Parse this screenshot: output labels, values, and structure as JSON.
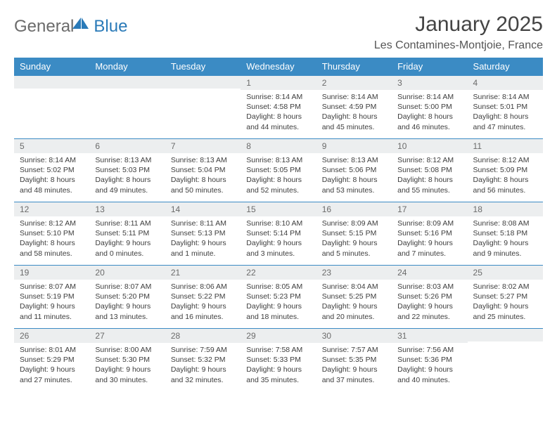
{
  "logo": {
    "text1": "General",
    "text2": "Blue"
  },
  "title": "January 2025",
  "location": "Les Contamines-Montjoie, France",
  "colors": {
    "header_bg": "#3b8bc4",
    "header_text": "#ffffff",
    "daynum_bg": "#eceeef",
    "daynum_text": "#6b6b6b",
    "border": "#3b8bc4",
    "body_text": "#3d3d3d"
  },
  "weekdays": [
    "Sunday",
    "Monday",
    "Tuesday",
    "Wednesday",
    "Thursday",
    "Friday",
    "Saturday"
  ],
  "weeks": [
    [
      {
        "blank": true
      },
      {
        "blank": true
      },
      {
        "blank": true
      },
      {
        "n": "1",
        "sr": "Sunrise: 8:14 AM",
        "ss": "Sunset: 4:58 PM",
        "d1": "Daylight: 8 hours",
        "d2": "and 44 minutes."
      },
      {
        "n": "2",
        "sr": "Sunrise: 8:14 AM",
        "ss": "Sunset: 4:59 PM",
        "d1": "Daylight: 8 hours",
        "d2": "and 45 minutes."
      },
      {
        "n": "3",
        "sr": "Sunrise: 8:14 AM",
        "ss": "Sunset: 5:00 PM",
        "d1": "Daylight: 8 hours",
        "d2": "and 46 minutes."
      },
      {
        "n": "4",
        "sr": "Sunrise: 8:14 AM",
        "ss": "Sunset: 5:01 PM",
        "d1": "Daylight: 8 hours",
        "d2": "and 47 minutes."
      }
    ],
    [
      {
        "n": "5",
        "sr": "Sunrise: 8:14 AM",
        "ss": "Sunset: 5:02 PM",
        "d1": "Daylight: 8 hours",
        "d2": "and 48 minutes."
      },
      {
        "n": "6",
        "sr": "Sunrise: 8:13 AM",
        "ss": "Sunset: 5:03 PM",
        "d1": "Daylight: 8 hours",
        "d2": "and 49 minutes."
      },
      {
        "n": "7",
        "sr": "Sunrise: 8:13 AM",
        "ss": "Sunset: 5:04 PM",
        "d1": "Daylight: 8 hours",
        "d2": "and 50 minutes."
      },
      {
        "n": "8",
        "sr": "Sunrise: 8:13 AM",
        "ss": "Sunset: 5:05 PM",
        "d1": "Daylight: 8 hours",
        "d2": "and 52 minutes."
      },
      {
        "n": "9",
        "sr": "Sunrise: 8:13 AM",
        "ss": "Sunset: 5:06 PM",
        "d1": "Daylight: 8 hours",
        "d2": "and 53 minutes."
      },
      {
        "n": "10",
        "sr": "Sunrise: 8:12 AM",
        "ss": "Sunset: 5:08 PM",
        "d1": "Daylight: 8 hours",
        "d2": "and 55 minutes."
      },
      {
        "n": "11",
        "sr": "Sunrise: 8:12 AM",
        "ss": "Sunset: 5:09 PM",
        "d1": "Daylight: 8 hours",
        "d2": "and 56 minutes."
      }
    ],
    [
      {
        "n": "12",
        "sr": "Sunrise: 8:12 AM",
        "ss": "Sunset: 5:10 PM",
        "d1": "Daylight: 8 hours",
        "d2": "and 58 minutes."
      },
      {
        "n": "13",
        "sr": "Sunrise: 8:11 AM",
        "ss": "Sunset: 5:11 PM",
        "d1": "Daylight: 9 hours",
        "d2": "and 0 minutes."
      },
      {
        "n": "14",
        "sr": "Sunrise: 8:11 AM",
        "ss": "Sunset: 5:13 PM",
        "d1": "Daylight: 9 hours",
        "d2": "and 1 minute."
      },
      {
        "n": "15",
        "sr": "Sunrise: 8:10 AM",
        "ss": "Sunset: 5:14 PM",
        "d1": "Daylight: 9 hours",
        "d2": "and 3 minutes."
      },
      {
        "n": "16",
        "sr": "Sunrise: 8:09 AM",
        "ss": "Sunset: 5:15 PM",
        "d1": "Daylight: 9 hours",
        "d2": "and 5 minutes."
      },
      {
        "n": "17",
        "sr": "Sunrise: 8:09 AM",
        "ss": "Sunset: 5:16 PM",
        "d1": "Daylight: 9 hours",
        "d2": "and 7 minutes."
      },
      {
        "n": "18",
        "sr": "Sunrise: 8:08 AM",
        "ss": "Sunset: 5:18 PM",
        "d1": "Daylight: 9 hours",
        "d2": "and 9 minutes."
      }
    ],
    [
      {
        "n": "19",
        "sr": "Sunrise: 8:07 AM",
        "ss": "Sunset: 5:19 PM",
        "d1": "Daylight: 9 hours",
        "d2": "and 11 minutes."
      },
      {
        "n": "20",
        "sr": "Sunrise: 8:07 AM",
        "ss": "Sunset: 5:20 PM",
        "d1": "Daylight: 9 hours",
        "d2": "and 13 minutes."
      },
      {
        "n": "21",
        "sr": "Sunrise: 8:06 AM",
        "ss": "Sunset: 5:22 PM",
        "d1": "Daylight: 9 hours",
        "d2": "and 16 minutes."
      },
      {
        "n": "22",
        "sr": "Sunrise: 8:05 AM",
        "ss": "Sunset: 5:23 PM",
        "d1": "Daylight: 9 hours",
        "d2": "and 18 minutes."
      },
      {
        "n": "23",
        "sr": "Sunrise: 8:04 AM",
        "ss": "Sunset: 5:25 PM",
        "d1": "Daylight: 9 hours",
        "d2": "and 20 minutes."
      },
      {
        "n": "24",
        "sr": "Sunrise: 8:03 AM",
        "ss": "Sunset: 5:26 PM",
        "d1": "Daylight: 9 hours",
        "d2": "and 22 minutes."
      },
      {
        "n": "25",
        "sr": "Sunrise: 8:02 AM",
        "ss": "Sunset: 5:27 PM",
        "d1": "Daylight: 9 hours",
        "d2": "and 25 minutes."
      }
    ],
    [
      {
        "n": "26",
        "sr": "Sunrise: 8:01 AM",
        "ss": "Sunset: 5:29 PM",
        "d1": "Daylight: 9 hours",
        "d2": "and 27 minutes."
      },
      {
        "n": "27",
        "sr": "Sunrise: 8:00 AM",
        "ss": "Sunset: 5:30 PM",
        "d1": "Daylight: 9 hours",
        "d2": "and 30 minutes."
      },
      {
        "n": "28",
        "sr": "Sunrise: 7:59 AM",
        "ss": "Sunset: 5:32 PM",
        "d1": "Daylight: 9 hours",
        "d2": "and 32 minutes."
      },
      {
        "n": "29",
        "sr": "Sunrise: 7:58 AM",
        "ss": "Sunset: 5:33 PM",
        "d1": "Daylight: 9 hours",
        "d2": "and 35 minutes."
      },
      {
        "n": "30",
        "sr": "Sunrise: 7:57 AM",
        "ss": "Sunset: 5:35 PM",
        "d1": "Daylight: 9 hours",
        "d2": "and 37 minutes."
      },
      {
        "n": "31",
        "sr": "Sunrise: 7:56 AM",
        "ss": "Sunset: 5:36 PM",
        "d1": "Daylight: 9 hours",
        "d2": "and 40 minutes."
      },
      {
        "blank": true
      }
    ]
  ]
}
